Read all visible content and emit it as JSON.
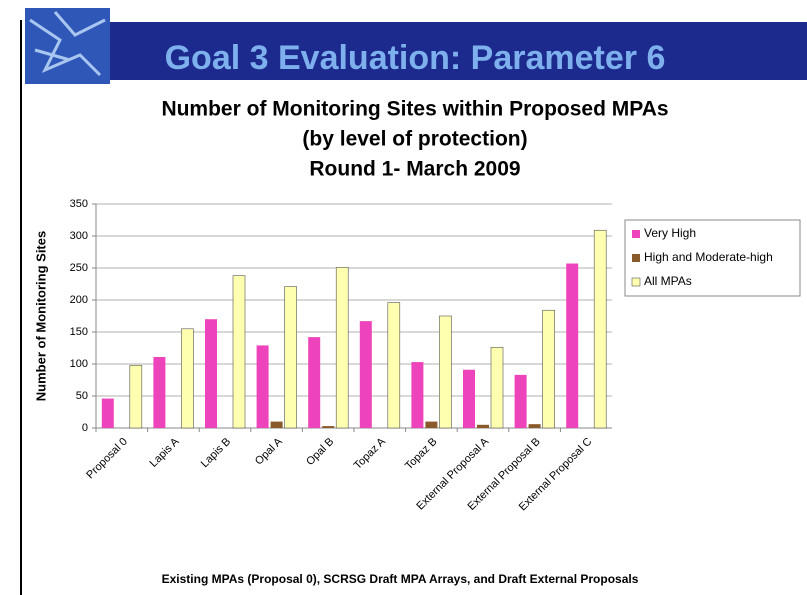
{
  "header": {
    "title": "Goal 3 Evaluation: Parameter 6"
  },
  "chart_data": {
    "type": "bar",
    "title": [
      "Number of Monitoring Sites within Proposed MPAs",
      "(by level of protection)",
      "Round 1- March 2009"
    ],
    "y_label": "Number of Monitoring Sites",
    "categories": [
      "Proposal 0",
      "Lapis A",
      "Lapis B",
      "Opal A",
      "Opal B",
      "Topaz A",
      "Topaz B",
      "External Proposal A",
      "External Proposal B",
      "External Proposal C"
    ],
    "series": [
      {
        "name": "Very High",
        "color": "#ee44bb",
        "values": [
          46,
          111,
          170,
          129,
          142,
          167,
          103,
          91,
          83,
          257
        ]
      },
      {
        "name": "High and Moderate-high",
        "color": "#8b5a2b",
        "values": [
          0,
          0,
          0,
          10,
          3,
          0,
          10,
          5,
          6,
          0
        ]
      },
      {
        "name": "All MPAs",
        "color": "#ffffb0",
        "values": [
          98,
          155,
          238,
          221,
          251,
          196,
          175,
          126,
          184,
          309
        ]
      }
    ],
    "ylim": [
      0,
      350
    ],
    "yticks": [
      0,
      50,
      100,
      150,
      200,
      250,
      300,
      350
    ],
    "grid": true,
    "legend": "right"
  },
  "footer": {
    "text": "Existing MPAs (Proposal 0), SCRSG Draft MPA Arrays, and Draft External Proposals"
  }
}
